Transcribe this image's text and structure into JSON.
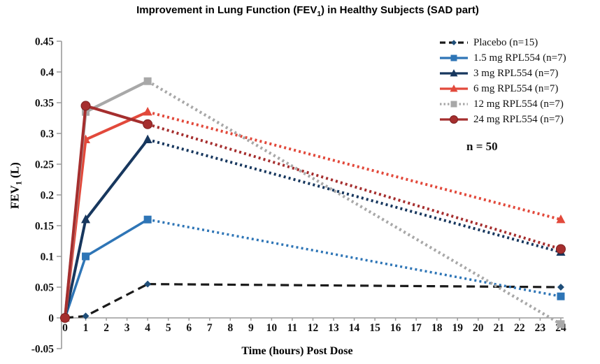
{
  "title": {
    "pre": "Improvement in Lung Function (FEV",
    "sub": "1",
    "post": ") in Healthy Subjects (SAD part)",
    "full": "Improvement in Lung Function (FEV1) in Healthy Subjects (SAD part)"
  },
  "chart_data": {
    "type": "line",
    "title": "Improvement in Lung Function (FEV1) in Healthy Subjects (SAD part)",
    "xlabel": "Time (hours) Post Dose",
    "ylabel": "FEV1 (L)",
    "ylabel_parts": {
      "pre": "FEV",
      "sub": "1",
      "post": " (L)"
    },
    "annotation": "n = 50",
    "x": [
      0,
      1,
      4,
      24
    ],
    "xlim": [
      0,
      24
    ],
    "ylim": [
      -0.05,
      0.45
    ],
    "xticks": [
      0,
      1,
      2,
      3,
      4,
      5,
      6,
      7,
      8,
      9,
      10,
      11,
      12,
      13,
      14,
      15,
      16,
      17,
      18,
      19,
      20,
      21,
      22,
      23,
      24
    ],
    "yticks": [
      {
        "v": 0.45,
        "label": "0.45"
      },
      {
        "v": 0.4,
        "label": "0.4"
      },
      {
        "v": 0.35,
        "label": "0.35"
      },
      {
        "v": 0.3,
        "label": "0.3"
      },
      {
        "v": 0.25,
        "label": "0.25"
      },
      {
        "v": 0.2,
        "label": "0.2"
      },
      {
        "v": 0.15,
        "label": "0.15"
      },
      {
        "v": 0.1,
        "label": "0.1"
      },
      {
        "v": 0.05,
        "label": "0.05"
      },
      {
        "v": 0,
        "label": "0"
      },
      {
        "v": -0.05,
        "label": "-0.05"
      }
    ],
    "grid": false,
    "legend_position": "top-right",
    "axis_color": "#9b9b9b",
    "series": [
      {
        "label": "Placebo (n=15)",
        "color": "#1a1a1a",
        "marker": "diamond",
        "marker_color": "#1f4e79",
        "marker_size": 9,
        "line_width": 3.2,
        "pre_style": "dashed",
        "post_style": "dashed",
        "legend_style": "dashed",
        "values": [
          0,
          0.003,
          0.055,
          0.05
        ]
      },
      {
        "label": "1.5 mg RPL554 (n=7)",
        "color": "#2e75b6",
        "marker": "square",
        "marker_size": 11,
        "line_width": 3.5,
        "pre_style": "solid",
        "post_style": "dotted",
        "legend_style": "solid",
        "values": [
          0,
          0.1,
          0.16,
          0.035
        ]
      },
      {
        "label": "3 mg RPL554 (n=7)",
        "color": "#17375e",
        "marker": "triangle",
        "marker_size": 13,
        "line_width": 4,
        "pre_style": "solid",
        "post_style": "dotted",
        "legend_style": "solid",
        "values": [
          0,
          0.16,
          0.29,
          0.107
        ]
      },
      {
        "label": "6 mg RPL554 (n=7)",
        "color": "#e2493b",
        "marker": "triangle",
        "marker_size": 13,
        "line_width": 4,
        "pre_style": "solid",
        "post_style": "dotted",
        "legend_style": "solid",
        "values": [
          0,
          0.29,
          0.335,
          0.16
        ]
      },
      {
        "label": "12 mg RPL554 (n=7)",
        "color": "#a8a8a8",
        "marker": "square",
        "marker_size": 11,
        "line_width": 4.2,
        "pre_style": "solid",
        "post_style": "dotted",
        "legend_style": "dotted",
        "values": [
          0,
          0.335,
          0.385,
          -0.01
        ]
      },
      {
        "label": "24 mg RPL554 (n=7)",
        "color": "#a52e2e",
        "marker": "circle",
        "marker_size": 13,
        "line_width": 4,
        "pre_style": "solid",
        "post_style": "dotted",
        "legend_style": "solid",
        "values": [
          0,
          0.345,
          0.315,
          0.112
        ]
      }
    ]
  }
}
